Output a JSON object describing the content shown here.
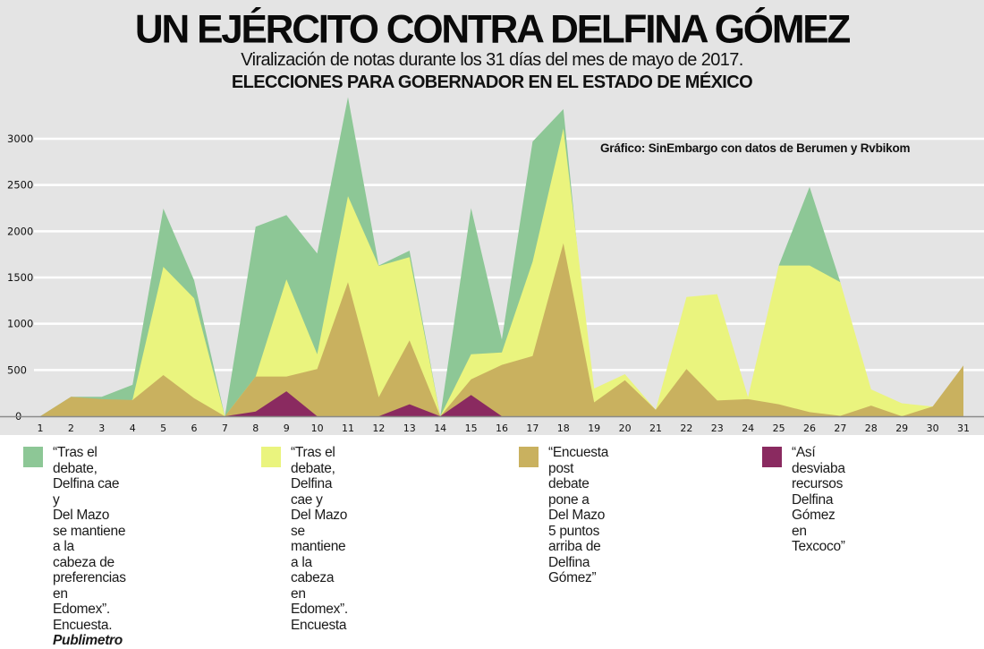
{
  "header": {
    "title": "UN EJÉRCITO CONTRA DELFINA GÓMEZ",
    "subtitle": "Viralización de notas durante los 31 días del mes de mayo de 2017.",
    "subtitle2": "ELECCIONES PARA GOBERNADOR EN EL ESTADO DE MÉXICO",
    "credit": "Gráfico: SinEmbargo con datos de Berumen y Rvbikom"
  },
  "colors": {
    "background": "#e4e4e4",
    "gridline": "#ffffff",
    "axis": "#8a8a8a"
  },
  "legend": [
    {
      "color": "#8dc796",
      "text": "“Tras el debate, Delfina cae y\nDel Mazo se mantiene a la\ncabeza de preferencias en\nEdomex”. Encuesta. ",
      "emphasis": "Publimetro"
    },
    {
      "color": "#eaf47e",
      "text": "“Tras el debate, Delfina cae y\nDel Mazo se mantiene a la\ncabeza en Edomex”. Encuesta",
      "emphasis": ""
    },
    {
      "color": "#c9b15f",
      "text": "“Encuesta post debate pone a\nDel Mazo 5 puntos arriba de\nDelfina Gómez”",
      "emphasis": ""
    },
    {
      "color": "#8a2a60",
      "text": "“Así desviaba recursos\nDelfina Gómez en Texcoco”",
      "emphasis": ""
    }
  ],
  "chart_data": {
    "type": "area",
    "title": "UN EJÉRCITO CONTRA DELFINA GÓMEZ",
    "xlabel": "",
    "ylabel": "",
    "x": [
      1,
      2,
      3,
      4,
      5,
      6,
      7,
      8,
      9,
      10,
      11,
      12,
      13,
      14,
      15,
      16,
      17,
      18,
      19,
      20,
      21,
      22,
      23,
      24,
      25,
      26,
      27,
      28,
      29,
      30,
      31
    ],
    "ylim": [
      0,
      3000
    ],
    "yticks": [
      0,
      500,
      1000,
      1500,
      2000,
      2500,
      3000
    ],
    "grid": true,
    "overlap": true,
    "legend_position": "bottom",
    "series": [
      {
        "name": "“Tras el debate, Delfina cae y Del Mazo se mantiene a la cabeza de preferencias en Edomex”. Encuesta. Publimetro",
        "color": "#8dc796",
        "values": [
          0,
          210,
          210,
          340,
          2245,
          1470,
          0,
          2050,
          2175,
          1760,
          3450,
          1630,
          1790,
          0,
          2250,
          830,
          2970,
          3320,
          0,
          0,
          0,
          0,
          0,
          0,
          1630,
          2480,
          1450,
          0,
          0,
          0,
          0
        ]
      },
      {
        "name": "“Tras el debate, Delfina cae y Del Mazo se mantiene a la cabeza en Edomex”. Encuesta",
        "color": "#eaf47e",
        "values": [
          0,
          0,
          0,
          180,
          1615,
          1275,
          0,
          430,
          1480,
          670,
          2380,
          1625,
          1720,
          0,
          670,
          690,
          1670,
          3110,
          300,
          455,
          70,
          1290,
          1320,
          205,
          1630,
          1630,
          1450,
          290,
          140,
          105,
          0
        ]
      },
      {
        "name": "“Encuesta post debate pone a Del Mazo 5 puntos arriba de Delfina Gómez”",
        "color": "#c9b15f",
        "values": [
          0,
          210,
          185,
          175,
          445,
          195,
          0,
          430,
          430,
          510,
          1450,
          205,
          820,
          0,
          400,
          555,
          650,
          1870,
          150,
          390,
          70,
          510,
          170,
          185,
          130,
          45,
          5,
          115,
          0,
          105,
          550
        ]
      },
      {
        "name": "“Así desviaba recursos Delfina Gómez en Texcoco”",
        "color": "#8a2a60",
        "values": [
          0,
          0,
          0,
          0,
          0,
          0,
          0,
          50,
          270,
          0,
          0,
          0,
          130,
          0,
          230,
          0,
          0,
          0,
          0,
          0,
          0,
          0,
          0,
          0,
          0,
          0,
          0,
          0,
          0,
          0,
          0
        ]
      }
    ]
  }
}
